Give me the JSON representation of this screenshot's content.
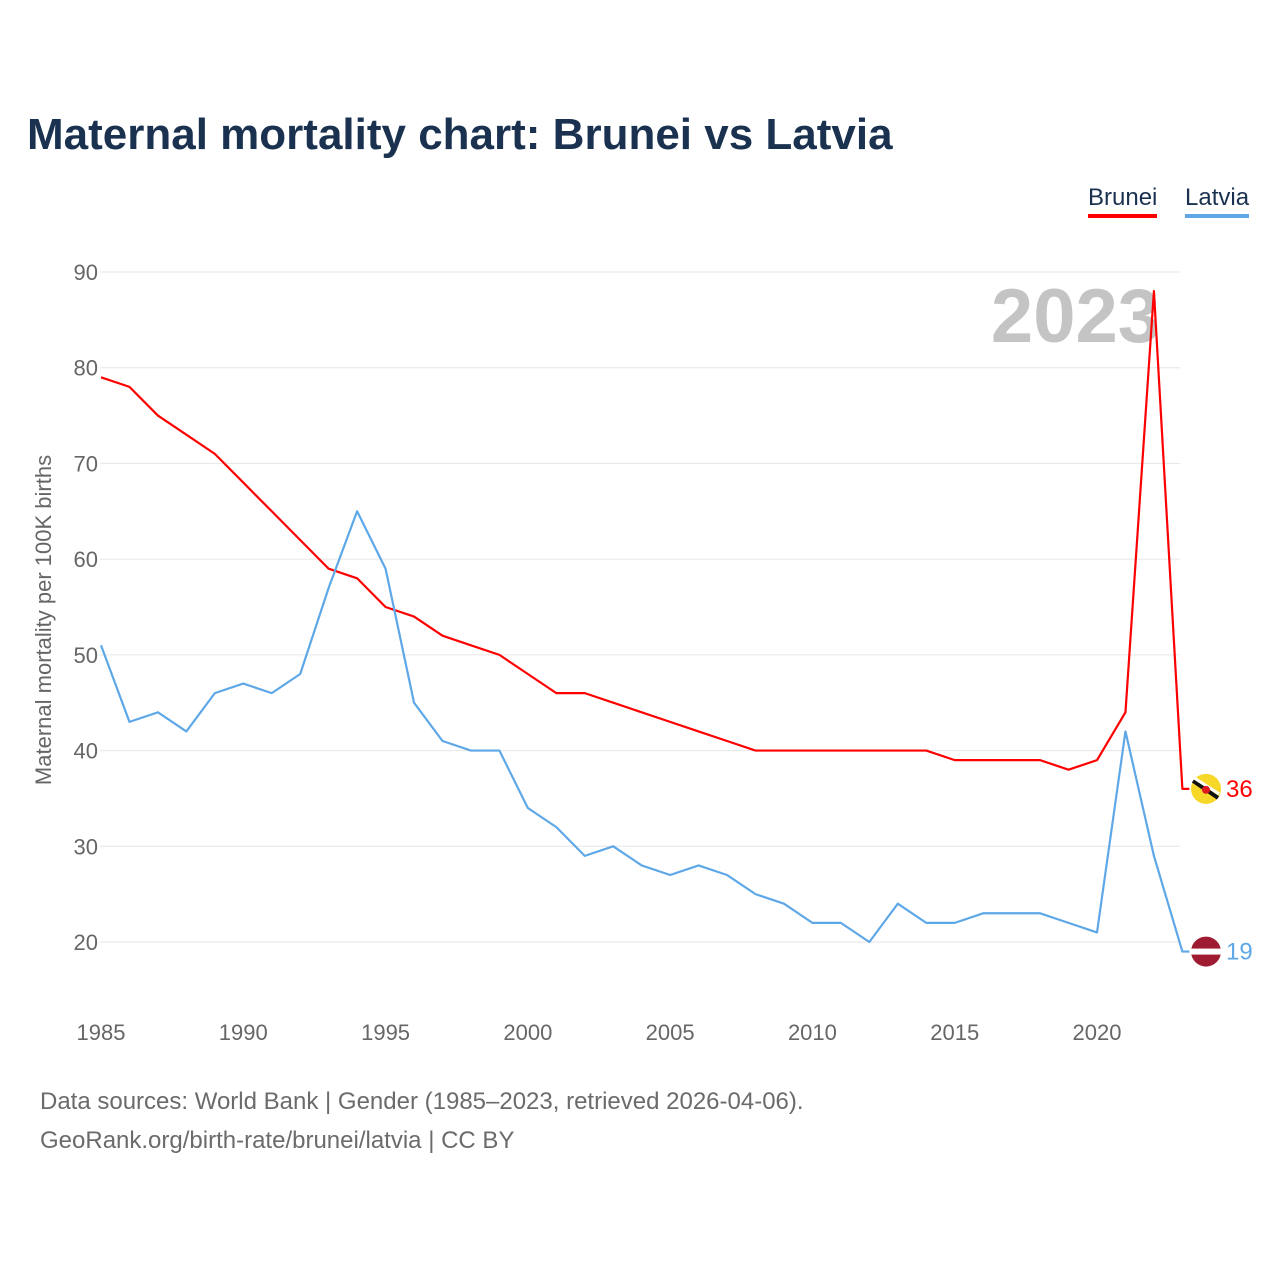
{
  "title": "Maternal mortality chart: Brunei vs Latvia",
  "source_line1": "Data sources: World Bank | Gender (1985–2023, retrieved 2026-04-06).",
  "source_line2": "GeoRank.org/birth-rate/brunei/latvia | CC BY",
  "chart_data": {
    "type": "line",
    "title": "Maternal mortality chart: Brunei vs Latvia",
    "xlabel": "",
    "ylabel": "Maternal mortality per 100K births",
    "year_watermark": "2023",
    "xlim": [
      1985,
      2023
    ],
    "ylim": [
      20,
      90
    ],
    "xticks": [
      "1985",
      "1990",
      "1995",
      "2000",
      "2005",
      "2010",
      "2015",
      "2020"
    ],
    "yticks": [
      "20",
      "30",
      "40",
      "50",
      "60",
      "70",
      "80",
      "90"
    ],
    "grid": true,
    "legend_position": "top-right",
    "x": [
      1985,
      1986,
      1987,
      1988,
      1989,
      1990,
      1991,
      1992,
      1993,
      1994,
      1995,
      1996,
      1997,
      1998,
      1999,
      2000,
      2001,
      2002,
      2003,
      2004,
      2005,
      2006,
      2007,
      2008,
      2009,
      2010,
      2011,
      2012,
      2013,
      2014,
      2015,
      2016,
      2017,
      2018,
      2019,
      2020,
      2021,
      2022,
      2023
    ],
    "series": [
      {
        "name": "Brunei",
        "color": "#ff0000",
        "end_label": "36",
        "values": [
          79,
          78,
          75,
          73,
          71,
          68,
          65,
          62,
          59,
          58,
          55,
          54,
          52,
          51,
          50,
          48,
          46,
          46,
          45,
          44,
          43,
          42,
          41,
          40,
          40,
          40,
          40,
          40,
          40,
          40,
          39,
          39,
          39,
          39,
          38,
          39,
          44,
          88,
          36
        ]
      },
      {
        "name": "Latvia",
        "color": "#5ea8e8",
        "end_label": "19",
        "values": [
          51,
          43,
          44,
          42,
          46,
          47,
          46,
          48,
          57,
          65,
          59,
          45,
          41,
          40,
          40,
          34,
          32,
          29,
          30,
          28,
          27,
          28,
          27,
          25,
          24,
          22,
          22,
          20,
          24,
          22,
          22,
          23,
          23,
          23,
          22,
          21,
          42,
          29,
          19
        ]
      }
    ]
  }
}
